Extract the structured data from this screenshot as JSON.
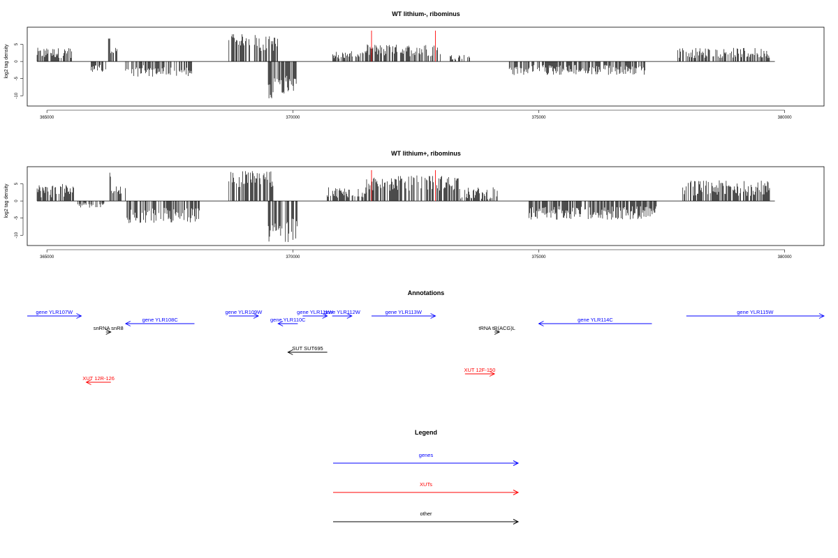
{
  "chart_data": [
    {
      "type": "bar",
      "title": "WT lithium-, ribominus",
      "ylabel": "log2 tag density",
      "xlim": [
        364600,
        380800
      ],
      "ylim": [
        -13,
        10
      ],
      "x_ticks": [
        "365000",
        "370000",
        "375000",
        "380000"
      ],
      "y_ticks": [
        "5",
        "0",
        "-5",
        "-10"
      ],
      "baseline_range": [
        364800,
        379800
      ],
      "markers": [
        371600,
        372900
      ],
      "segments": [
        {
          "start": 364800,
          "end": 365500,
          "side": "up",
          "min": 1.0,
          "max": 4.0
        },
        {
          "start": 365900,
          "end": 366200,
          "side": "down",
          "min": 1.0,
          "max": 3.0
        },
        {
          "start": 366250,
          "end": 366300,
          "side": "up",
          "min": 5.0,
          "max": 7.5
        },
        {
          "start": 366300,
          "end": 366450,
          "side": "up",
          "min": 2.0,
          "max": 4.0
        },
        {
          "start": 366600,
          "end": 368000,
          "side": "down",
          "min": 1.0,
          "max": 4.5
        },
        {
          "start": 368700,
          "end": 369300,
          "side": "up",
          "min": 4.5,
          "max": 8.0
        },
        {
          "start": 369300,
          "end": 369700,
          "side": "up",
          "min": 3.0,
          "max": 7.5
        },
        {
          "start": 369500,
          "end": 369900,
          "side": "down",
          "min": 4.0,
          "max": 11.0
        },
        {
          "start": 369900,
          "end": 370100,
          "side": "down",
          "min": 5.0,
          "max": 9.5
        },
        {
          "start": 370800,
          "end": 371500,
          "side": "up",
          "min": 0.8,
          "max": 3.0
        },
        {
          "start": 371500,
          "end": 373000,
          "side": "up",
          "min": 1.5,
          "max": 5.0
        },
        {
          "start": 373200,
          "end": 373600,
          "side": "up",
          "min": 0.5,
          "max": 2.0
        },
        {
          "start": 374400,
          "end": 377200,
          "side": "down",
          "min": 1.0,
          "max": 4.0
        },
        {
          "start": 377800,
          "end": 379700,
          "side": "up",
          "min": 1.0,
          "max": 4.0
        }
      ]
    },
    {
      "type": "bar",
      "title": "WT lithium+, ribominus",
      "ylabel": "log2 tag density",
      "xlim": [
        364600,
        380800
      ],
      "ylim": [
        -13,
        10
      ],
      "x_ticks": [
        "365000",
        "370000",
        "375000",
        "380000"
      ],
      "y_ticks": [
        "5",
        "0",
        "-5",
        "-10"
      ],
      "baseline_range": [
        364800,
        379800
      ],
      "markers": [
        371600,
        372900
      ],
      "segments": [
        {
          "start": 364800,
          "end": 365600,
          "side": "up",
          "min": 1.0,
          "max": 5.0
        },
        {
          "start": 365600,
          "end": 366200,
          "side": "down",
          "min": 0.5,
          "max": 2.0
        },
        {
          "start": 366250,
          "end": 366300,
          "side": "up",
          "min": 6.0,
          "max": 9.0
        },
        {
          "start": 366300,
          "end": 366600,
          "side": "up",
          "min": 2.0,
          "max": 4.5
        },
        {
          "start": 366600,
          "end": 368100,
          "side": "down",
          "min": 2.0,
          "max": 6.5
        },
        {
          "start": 368700,
          "end": 369600,
          "side": "up",
          "min": 4.0,
          "max": 9.0
        },
        {
          "start": 369500,
          "end": 370100,
          "side": "down",
          "min": 5.0,
          "max": 12.0
        },
        {
          "start": 370700,
          "end": 371500,
          "side": "up",
          "min": 1.0,
          "max": 4.0
        },
        {
          "start": 371500,
          "end": 373400,
          "side": "up",
          "min": 3.0,
          "max": 7.5
        },
        {
          "start": 373400,
          "end": 374200,
          "side": "up",
          "min": 0.5,
          "max": 4.0
        },
        {
          "start": 374800,
          "end": 377400,
          "side": "down",
          "min": 1.5,
          "max": 5.5
        },
        {
          "start": 377900,
          "end": 379700,
          "side": "up",
          "min": 1.5,
          "max": 6.0
        }
      ]
    }
  ],
  "annotations": {
    "title": "Annotations",
    "items": [
      {
        "label": "gene YLR107W",
        "color": "#0000ff",
        "start": 364600,
        "end": 365700,
        "dir": "+",
        "row": 0
      },
      {
        "label": "gene YLR108C",
        "color": "#0000ff",
        "start": 366600,
        "end": 368000,
        "dir": "-",
        "row": 1
      },
      {
        "label": "gene YLR109W",
        "color": "#0000ff",
        "start": 368700,
        "end": 369300,
        "dir": "+",
        "row": 0
      },
      {
        "label": "gene YLR110C",
        "color": "#0000ff",
        "start": 369700,
        "end": 370100,
        "dir": "-",
        "row": 1
      },
      {
        "label": "gene YLR111W",
        "color": "#0000ff",
        "start": 370200,
        "end": 370700,
        "dir": "+",
        "row": 0
      },
      {
        "label": "gene YLR112W",
        "color": "#0000ff",
        "start": 370800,
        "end": 371200,
        "dir": "+",
        "row": 0
      },
      {
        "label": "gene YLR113W",
        "color": "#0000ff",
        "start": 371600,
        "end": 372900,
        "dir": "+",
        "row": 0
      },
      {
        "label": "gene YLR114C",
        "color": "#0000ff",
        "start": 375000,
        "end": 377300,
        "dir": "-",
        "row": 1
      },
      {
        "label": "gene YLR115W",
        "color": "#0000ff",
        "start": 378000,
        "end": 380800,
        "dir": "+",
        "row": 0
      },
      {
        "label": "snRNA snR8",
        "color": "#000000",
        "start": 366200,
        "end": 366300,
        "dir": "+",
        "row": 2
      },
      {
        "label": "tRNA tR(ACG)L",
        "color": "#000000",
        "start": 374100,
        "end": 374200,
        "dir": "+",
        "row": 2
      },
      {
        "label": "SUT SUT695",
        "color": "#000000",
        "start": 369900,
        "end": 370700,
        "dir": "-",
        "row": 4
      },
      {
        "label": "XUT 12R-126",
        "color": "#ff0000",
        "start": 365800,
        "end": 366300,
        "dir": "-",
        "row": 6
      },
      {
        "label": "XUT 12F-150",
        "color": "#ff0000",
        "start": 373500,
        "end": 374100,
        "dir": "+",
        "row": 5
      }
    ]
  },
  "legend": {
    "title": "Legend",
    "items": [
      {
        "label": "genes",
        "color": "#0000ff"
      },
      {
        "label": "XUTs",
        "color": "#ff0000"
      },
      {
        "label": "other",
        "color": "#000000"
      }
    ]
  }
}
